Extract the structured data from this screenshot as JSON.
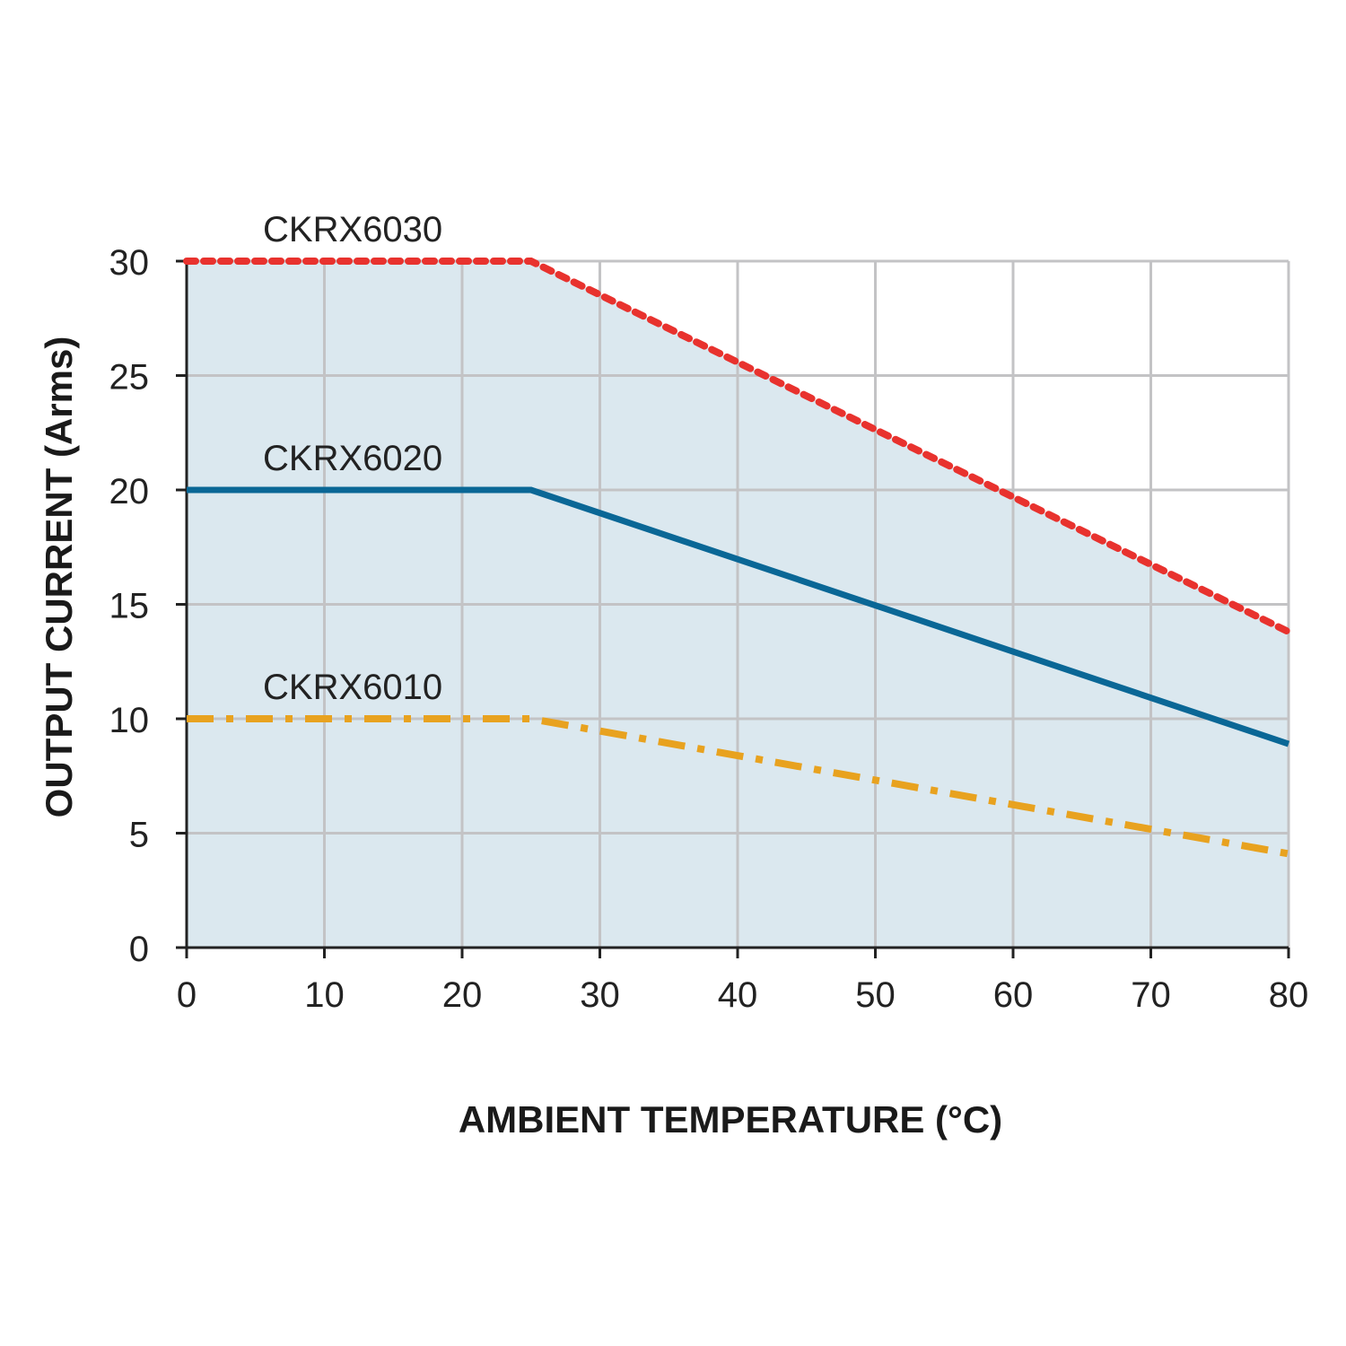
{
  "chart_data": {
    "type": "line",
    "title": "",
    "xlabel": "AMBIENT TEMPERATURE (°C)",
    "ylabel": "OUTPUT CURRENT (Arms)",
    "xlim": [
      0,
      80
    ],
    "ylim": [
      0,
      30
    ],
    "xticks": [
      "0",
      "10",
      "20",
      "30",
      "40",
      "50",
      "60",
      "70",
      "80"
    ],
    "yticks": [
      "0",
      "5",
      "10",
      "15",
      "20",
      "25",
      "30"
    ],
    "grid": true,
    "series": [
      {
        "name": "CKRX6030",
        "x": [
          0,
          25,
          80
        ],
        "y": [
          30,
          30,
          13.8
        ],
        "color": "#e8322e",
        "style": "dotted",
        "filled": true
      },
      {
        "name": "CKRX6020",
        "x": [
          0,
          25,
          80
        ],
        "y": [
          20,
          20,
          8.9
        ],
        "color": "#0a6796",
        "style": "solid"
      },
      {
        "name": "CKRX6010",
        "x": [
          0,
          25,
          80
        ],
        "y": [
          10,
          10,
          4.1
        ],
        "color": "#e8a21f",
        "style": "dashdot"
      }
    ],
    "fill_color": "#dbe8ef",
    "grid_color": "#c3c3c5"
  }
}
